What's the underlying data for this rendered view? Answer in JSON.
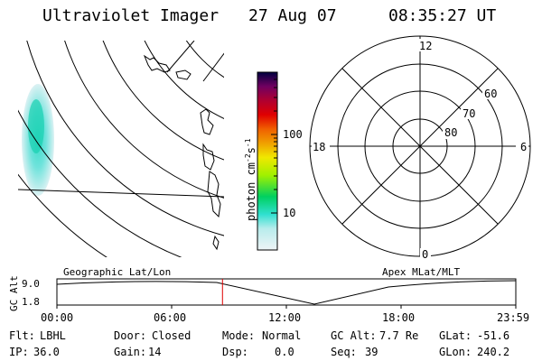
{
  "header": {
    "instrument": "Ultraviolet Imager",
    "date": "27 Aug 07",
    "time": "08:35:27 UT"
  },
  "colorbar": {
    "label": "photon cm",
    "exp1": "-2",
    "unit2": "s",
    "exp2": "-1",
    "ticks": [
      "100",
      "10"
    ]
  },
  "polar_plot": {
    "mlt_labels": {
      "top": "12",
      "left": "18",
      "right": "6",
      "bottom": "0"
    },
    "lat_labels": [
      "60",
      "70",
      "80"
    ]
  },
  "timeline": {
    "left_title": "Geographic Lat/Lon",
    "right_title": "Apex MLat/MLT",
    "axis_label": "GC Alt",
    "y_ticks": [
      "9.0",
      "1.8"
    ],
    "x_ticks": [
      "00:00",
      "06:00",
      "12:00",
      "18:00",
      "23:59"
    ],
    "current_time_fraction": 0.3608
  },
  "status": {
    "row1": [
      {
        "key": "Flt:",
        "value": "LBHL"
      },
      {
        "key": "Door:",
        "value": "Closed"
      },
      {
        "key": "Mode:",
        "value": "Normal"
      },
      {
        "key": "GC Alt:",
        "value": "7.7 Re"
      },
      {
        "key": "GLat:",
        "value": "-51.6"
      }
    ],
    "row2": [
      {
        "key": "IP:",
        "value": "36.0"
      },
      {
        "key": "Gain:",
        "value": "14"
      },
      {
        "key": "Dsp:",
        "value": "0.0"
      },
      {
        "key": "Seq:",
        "value": "39"
      },
      {
        "key": "GLon:",
        "value": "240.2"
      }
    ]
  },
  "colors": {
    "current_time_marker": "#e00000",
    "colorbar_stops": [
      "#e8f0f2",
      "#40e8d8",
      "#00c840",
      "#a8f000",
      "#f0e800",
      "#f0a000",
      "#f06000",
      "#e00000",
      "#b00030",
      "#700060",
      "#000040"
    ]
  }
}
